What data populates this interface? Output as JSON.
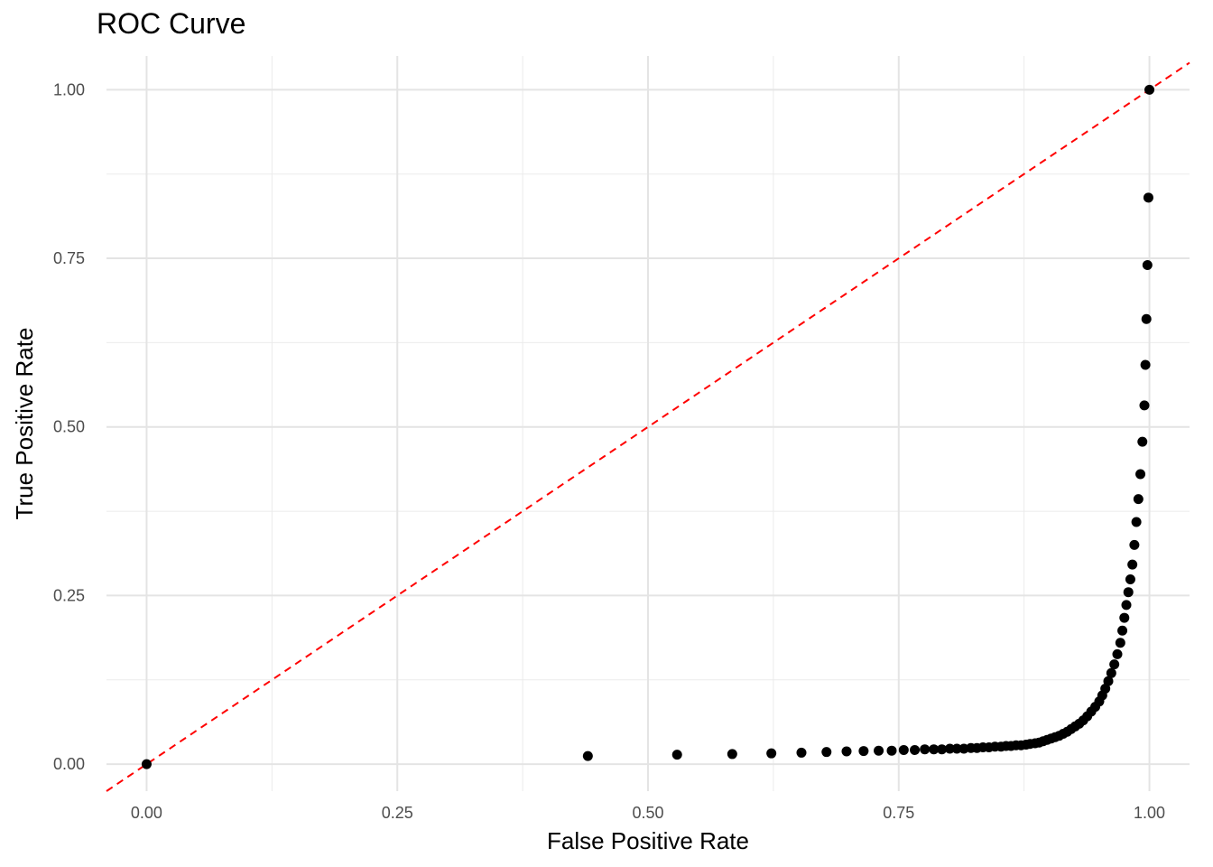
{
  "chart_data": {
    "type": "scatter",
    "title": "ROC Curve",
    "xlabel": "False Positive Rate",
    "ylabel": "True Positive Rate",
    "xlim": [
      -0.04,
      1.04
    ],
    "ylim": [
      -0.04,
      1.05
    ],
    "x_ticks": [
      "0.00",
      "0.25",
      "0.50",
      "0.75",
      "1.00"
    ],
    "y_ticks": [
      "0.00",
      "0.25",
      "0.50",
      "0.75",
      "1.00"
    ],
    "grid": true,
    "reference_line": {
      "slope": 1,
      "intercept": 0,
      "style": "dashed",
      "color": "#ff0000"
    },
    "point_color": "#000000",
    "series": [
      {
        "points": [
          [
            0.0,
            0.0
          ],
          [
            0.44,
            0.012
          ],
          [
            0.529,
            0.014
          ],
          [
            0.584,
            0.015
          ],
          [
            0.623,
            0.016
          ],
          [
            0.653,
            0.017
          ],
          [
            0.678,
            0.018
          ],
          [
            0.698,
            0.019
          ],
          [
            0.715,
            0.0195
          ],
          [
            0.73,
            0.02
          ],
          [
            0.743,
            0.02
          ],
          [
            0.755,
            0.021
          ],
          [
            0.766,
            0.021
          ],
          [
            0.776,
            0.022
          ],
          [
            0.785,
            0.022
          ],
          [
            0.793,
            0.022
          ],
          [
            0.801,
            0.023
          ],
          [
            0.808,
            0.023
          ],
          [
            0.815,
            0.023
          ],
          [
            0.822,
            0.024
          ],
          [
            0.828,
            0.024
          ],
          [
            0.834,
            0.025
          ],
          [
            0.84,
            0.025
          ],
          [
            0.846,
            0.026
          ],
          [
            0.852,
            0.026
          ],
          [
            0.857,
            0.027
          ],
          [
            0.862,
            0.027
          ],
          [
            0.867,
            0.028
          ],
          [
            0.872,
            0.028
          ],
          [
            0.877,
            0.029
          ],
          [
            0.881,
            0.03
          ],
          [
            0.886,
            0.031
          ],
          [
            0.89,
            0.032
          ],
          [
            0.894,
            0.034
          ],
          [
            0.898,
            0.036
          ],
          [
            0.902,
            0.038
          ],
          [
            0.906,
            0.04
          ],
          [
            0.91,
            0.042
          ],
          [
            0.914,
            0.045
          ],
          [
            0.918,
            0.048
          ],
          [
            0.922,
            0.052
          ],
          [
            0.926,
            0.056
          ],
          [
            0.93,
            0.06
          ],
          [
            0.934,
            0.065
          ],
          [
            0.938,
            0.071
          ],
          [
            0.942,
            0.078
          ],
          [
            0.946,
            0.085
          ],
          [
            0.95,
            0.093
          ],
          [
            0.953,
            0.102
          ],
          [
            0.956,
            0.112
          ],
          [
            0.959,
            0.123
          ],
          [
            0.962,
            0.135
          ],
          [
            0.965,
            0.148
          ],
          [
            0.968,
            0.163
          ],
          [
            0.971,
            0.18
          ],
          [
            0.973,
            0.198
          ],
          [
            0.975,
            0.217
          ],
          [
            0.977,
            0.236
          ],
          [
            0.979,
            0.255
          ],
          [
            0.981,
            0.274
          ],
          [
            0.983,
            0.296
          ],
          [
            0.985,
            0.325
          ],
          [
            0.987,
            0.359
          ],
          [
            0.989,
            0.393
          ],
          [
            0.991,
            0.43
          ],
          [
            0.993,
            0.478
          ],
          [
            0.995,
            0.532
          ],
          [
            0.996,
            0.592
          ],
          [
            0.997,
            0.66
          ],
          [
            0.998,
            0.74
          ],
          [
            0.999,
            0.84
          ],
          [
            1.0,
            1.0
          ]
        ]
      }
    ]
  }
}
